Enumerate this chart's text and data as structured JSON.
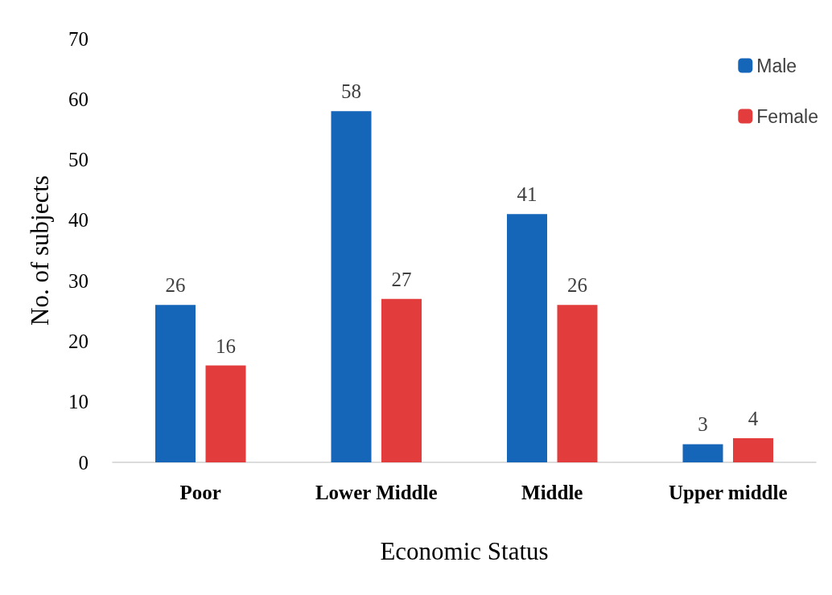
{
  "chart_data": {
    "type": "bar",
    "xlabel": "Economic Status",
    "ylabel": "No. of subjects",
    "categories": [
      "Poor",
      "Lower Middle",
      "Middle",
      "Upper middle"
    ],
    "series": [
      {
        "name": "Male",
        "color": "#1565b8",
        "values": [
          26,
          58,
          41,
          3
        ]
      },
      {
        "name": "Female",
        "color": "#e23c3c",
        "values": [
          16,
          27,
          26,
          4
        ]
      }
    ],
    "ylim": [
      0,
      70
    ],
    "yticks": [
      0,
      10,
      20,
      30,
      40,
      50,
      60,
      70
    ],
    "grid": false,
    "legend": "top right",
    "data_labels": true
  }
}
